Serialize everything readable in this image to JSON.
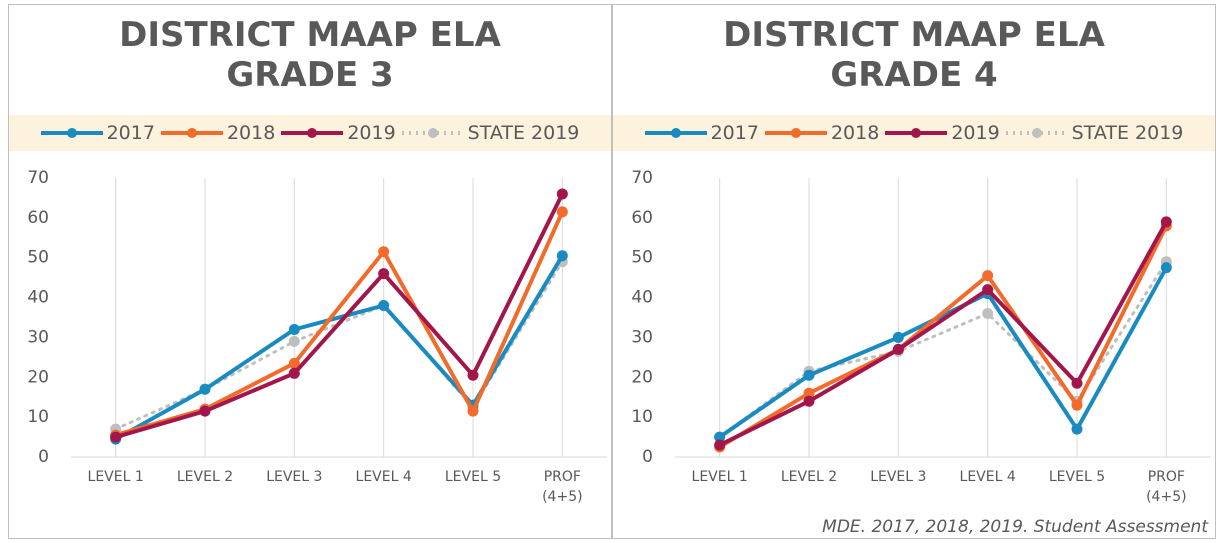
{
  "chart_data": [
    {
      "type": "line",
      "title": "DISTRICT MAAP ELA\nGRADE 3",
      "categories": [
        "LEVEL 1",
        "LEVEL 2",
        "LEVEL 3",
        "LEVEL 4",
        "LEVEL 5",
        "PROF\n(4+5)"
      ],
      "series": [
        {
          "name": "2017",
          "color": "#1a8bc0",
          "values": [
            4.5,
            17,
            32,
            38,
            13,
            50.5
          ]
        },
        {
          "name": "2018",
          "color": "#f26b2b",
          "values": [
            5.5,
            12,
            23.5,
            51.5,
            11.5,
            61.5
          ]
        },
        {
          "name": "2019",
          "color": "#a3164b",
          "values": [
            5,
            11.5,
            21,
            46,
            20.5,
            66
          ]
        },
        {
          "name": "STATE 2019",
          "color": "#bfbfbf",
          "dashed": true,
          "values": [
            7,
            17,
            29,
            38,
            12.5,
            49
          ]
        }
      ],
      "ylim": [
        0,
        70
      ],
      "yticks": [
        0,
        10,
        20,
        30,
        40,
        50,
        60,
        70
      ],
      "grid": true
    },
    {
      "type": "line",
      "title": "DISTRICT MAAP ELA\nGRADE 4",
      "categories": [
        "LEVEL 1",
        "LEVEL 2",
        "LEVEL 3",
        "LEVEL 4",
        "LEVEL 5",
        "PROF\n(4+5)"
      ],
      "series": [
        {
          "name": "2017",
          "color": "#1a8bc0",
          "values": [
            5,
            20.5,
            30,
            41,
            7,
            47.5
          ]
        },
        {
          "name": "2018",
          "color": "#f26b2b",
          "values": [
            2.5,
            16,
            27,
            45.5,
            13,
            58
          ]
        },
        {
          "name": "2019",
          "color": "#a3164b",
          "values": [
            3,
            14,
            27,
            42,
            18.5,
            59
          ]
        },
        {
          "name": "STATE 2019",
          "color": "#bfbfbf",
          "dashed": true,
          "values": [
            5,
            21.5,
            26.5,
            36,
            14,
            49
          ]
        }
      ],
      "ylim": [
        0,
        70
      ],
      "yticks": [
        0,
        10,
        20,
        30,
        40,
        50,
        60,
        70
      ],
      "grid": true
    }
  ],
  "source": "MDE. 2017, 2018, 2019. Student Assessment"
}
